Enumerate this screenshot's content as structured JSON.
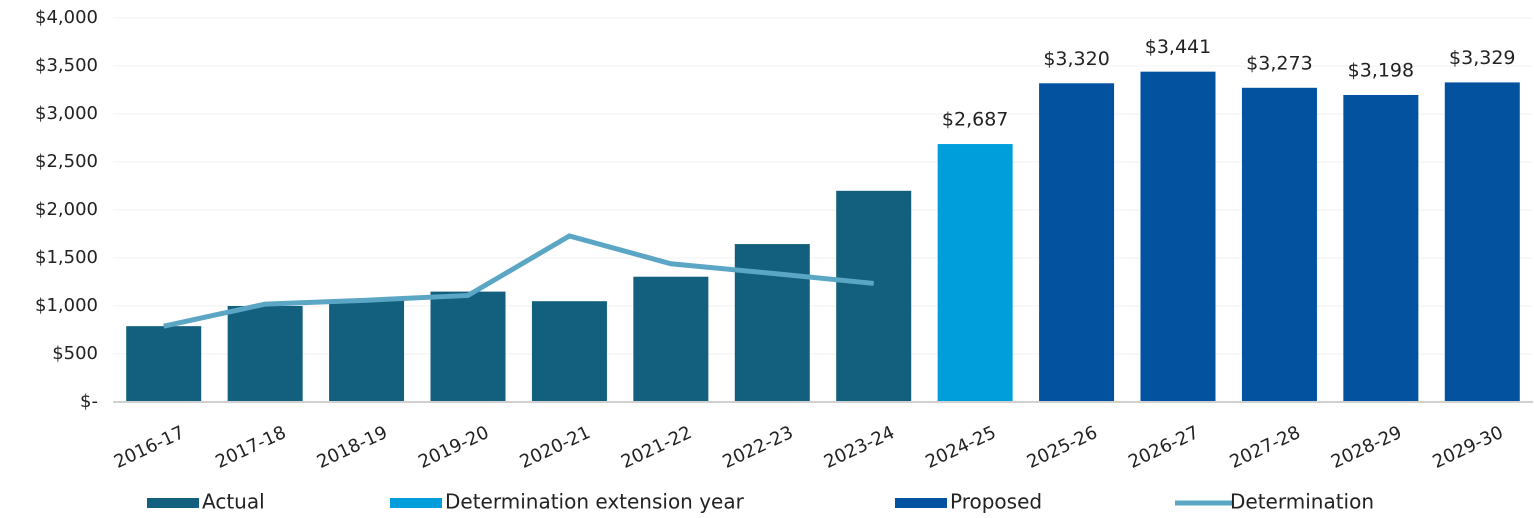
{
  "chart_data": {
    "type": "bar",
    "categories": [
      "2016-17",
      "2017-18",
      "2018-19",
      "2019-20",
      "2020-21",
      "2021-22",
      "2022-23",
      "2023-24",
      "2024-25",
      "2025-26",
      "2026-27",
      "2027-28",
      "2028-29",
      "2029-30"
    ],
    "series": [
      {
        "name": "Actual",
        "type": "bar",
        "color": "#12607e",
        "values": [
          790,
          1000,
          1060,
          1150,
          1050,
          1305,
          1645,
          2200,
          null,
          null,
          null,
          null,
          null,
          null
        ]
      },
      {
        "name": "Determination extension year",
        "type": "bar",
        "color": "#009edb",
        "values": [
          null,
          null,
          null,
          null,
          null,
          null,
          null,
          null,
          2687,
          null,
          null,
          null,
          null,
          null
        ],
        "value_labels": [
          null,
          null,
          null,
          null,
          null,
          null,
          null,
          null,
          "$2,687",
          null,
          null,
          null,
          null,
          null
        ]
      },
      {
        "name": "Proposed",
        "type": "bar",
        "color": "#0352a0",
        "values": [
          null,
          null,
          null,
          null,
          null,
          null,
          null,
          null,
          null,
          3320,
          3441,
          3273,
          3198,
          3329
        ],
        "value_labels": [
          null,
          null,
          null,
          null,
          null,
          null,
          null,
          null,
          null,
          "$3,320",
          "$3,441",
          "$3,273",
          "$3,198",
          "$3,329"
        ]
      },
      {
        "name": "Determination",
        "type": "line",
        "color": "#5ba6c5",
        "values": [
          790,
          1020,
          1060,
          1110,
          1730,
          1440,
          1340,
          1235,
          null,
          null,
          null,
          null,
          null,
          null
        ]
      }
    ],
    "ylim": [
      0,
      4000
    ],
    "yticks": [
      {
        "value": 0,
        "label": "$-"
      },
      {
        "value": 500,
        "label": "$500"
      },
      {
        "value": 1000,
        "label": "$1,000"
      },
      {
        "value": 1500,
        "label": "$1,500"
      },
      {
        "value": 2000,
        "label": "$2,000"
      },
      {
        "value": 2500,
        "label": "$2,500"
      },
      {
        "value": 3000,
        "label": "$3,000"
      },
      {
        "value": 3500,
        "label": "$3,500"
      },
      {
        "value": 4000,
        "label": "$4,000"
      }
    ],
    "grid": true,
    "legend": "bottom"
  }
}
